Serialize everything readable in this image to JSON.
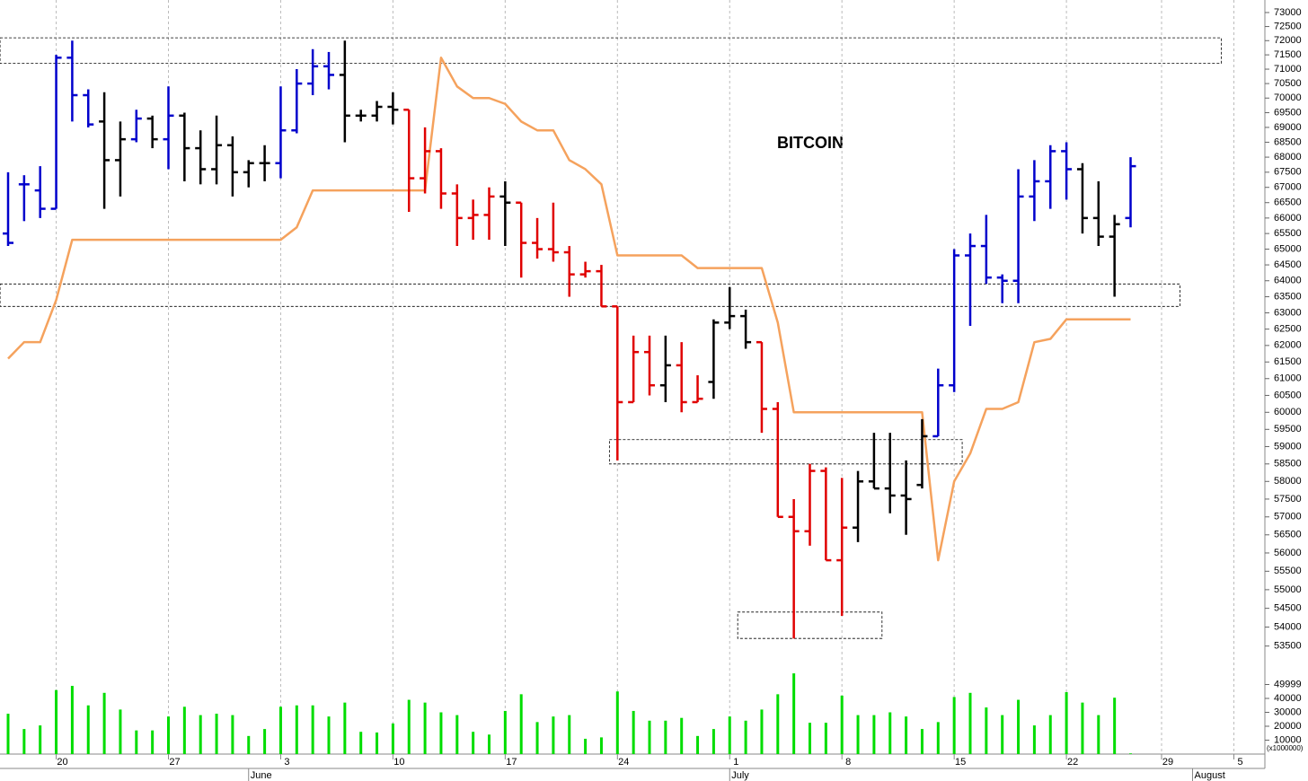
{
  "chart_data": {
    "type": "ohlc",
    "title": "BITCOIN",
    "categories": [
      null,
      null,
      null,
      "20",
      null,
      null,
      null,
      null,
      null,
      null,
      "27",
      null,
      null,
      null,
      null,
      null,
      null,
      "3",
      null,
      null,
      null,
      null,
      null,
      null,
      "10",
      null,
      null,
      null,
      null,
      null,
      null,
      "17",
      null,
      null,
      null,
      null,
      null,
      null,
      "24",
      null,
      null,
      null,
      null,
      null,
      null,
      "1",
      null,
      null,
      null,
      null,
      null,
      null,
      "8",
      null,
      null,
      null,
      null,
      null,
      null,
      "15",
      null,
      null,
      null,
      null,
      null,
      null,
      "22",
      null,
      null,
      null,
      null,
      null,
      null,
      "29",
      null,
      null,
      null,
      null,
      null,
      null,
      "5"
    ],
    "month_ticks": [
      {
        "value": 15,
        "label": "June"
      },
      {
        "value": 45,
        "label": "July"
      },
      {
        "value": 76,
        "label": "August"
      }
    ],
    "open": [
      65500,
      67100,
      66900,
      66300,
      71400,
      70100,
      69200,
      67900,
      68600,
      69300,
      68600,
      69400,
      68300,
      67600,
      68400,
      67500,
      67800,
      67800,
      68900,
      70500,
      71100,
      70800,
      69400,
      69400,
      69700,
      69600,
      67300,
      68200,
      66800,
      66000,
      66100,
      66700,
      66500,
      65200,
      65000,
      64900,
      64200,
      64300,
      63200,
      60300,
      61800,
      60800,
      61400,
      60300,
      60900,
      62700,
      62900,
      62100,
      60100,
      57000,
      56600,
      58300,
      55800,
      56700,
      58000,
      57800,
      57600,
      57900,
      59300,
      60800,
      64800,
      65100,
      64100,
      64000,
      66700,
      67200,
      68200,
      67600,
      66000,
      65400,
      66000,
      null,
      null,
      null,
      null,
      null,
      null,
      null,
      null,
      null,
      null
    ],
    "high": [
      67500,
      67400,
      67700,
      71500,
      72000,
      70300,
      70200,
      69200,
      69600,
      69400,
      70400,
      69500,
      68900,
      69400,
      68700,
      67900,
      68400,
      70400,
      71000,
      71700,
      71600,
      72000,
      69600,
      69900,
      70200,
      69600,
      69000,
      68300,
      67100,
      66600,
      67000,
      67200,
      66500,
      66000,
      66500,
      65100,
      64600,
      64500,
      63200,
      62300,
      62300,
      62300,
      62100,
      61100,
      62800,
      63800,
      63100,
      62100,
      60300,
      57500,
      58500,
      58400,
      58100,
      58300,
      59400,
      59400,
      58600,
      59800,
      61300,
      65000,
      65500,
      66100,
      64200,
      67600,
      67900,
      68400,
      68500,
      67800,
      67200,
      66100,
      68000,
      null,
      null,
      null,
      null,
      null,
      null,
      null,
      null,
      null,
      null
    ],
    "low": [
      65100,
      65900,
      66000,
      66300,
      69200,
      69000,
      66300,
      66700,
      68500,
      68300,
      67600,
      67200,
      67100,
      67100,
      66700,
      67000,
      67200,
      67300,
      68800,
      70100,
      70300,
      68500,
      69200,
      69200,
      69100,
      66200,
      66800,
      66300,
      65100,
      65300,
      65300,
      65100,
      64100,
      64700,
      64600,
      63500,
      64100,
      63200,
      58600,
      60300,
      60500,
      60300,
      60000,
      60300,
      60400,
      62500,
      61900,
      59400,
      57000,
      53700,
      56200,
      55800,
      54300,
      56300,
      57800,
      57100,
      56500,
      57800,
      59300,
      60600,
      62600,
      63900,
      63300,
      63300,
      65900,
      66300,
      66600,
      65500,
      65100,
      63500,
      65700,
      null,
      null,
      null,
      null,
      null,
      null,
      null,
      null,
      null,
      null
    ],
    "close": [
      65200,
      67100,
      66300,
      71400,
      70100,
      69100,
      67900,
      68600,
      69300,
      68600,
      69400,
      68300,
      67600,
      68400,
      67500,
      67800,
      67800,
      68900,
      70500,
      71100,
      70800,
      69400,
      69400,
      69700,
      69600,
      67300,
      68200,
      66800,
      66000,
      66100,
      66700,
      66500,
      65200,
      65000,
      64900,
      64200,
      64300,
      63200,
      60300,
      61800,
      60800,
      61400,
      60300,
      60400,
      62700,
      62900,
      62100,
      60100,
      57000,
      56600,
      58300,
      55800,
      56700,
      58000,
      57800,
      57600,
      57500,
      59300,
      60800,
      64800,
      65100,
      64100,
      64000,
      66700,
      67200,
      68200,
      67600,
      66000,
      65400,
      65800,
      67700,
      null,
      null,
      null,
      null,
      null,
      null,
      null,
      null,
      null,
      null
    ],
    "bar_colors": [
      "#0000cc",
      "#0000cc",
      "#0000cc",
      "#0000cc",
      "#0000cc",
      "#0000cc",
      "#000000",
      "#000000",
      "#0000cc",
      "#000000",
      "#0000cc",
      "#000000",
      "#000000",
      "#000000",
      "#000000",
      "#000000",
      "#000000",
      "#0000cc",
      "#0000cc",
      "#0000cc",
      "#0000cc",
      "#000000",
      "#000000",
      "#000000",
      "#000000",
      "#e00000",
      "#e00000",
      "#e00000",
      "#e00000",
      "#e00000",
      "#e00000",
      "#000000",
      "#e00000",
      "#e00000",
      "#e00000",
      "#e00000",
      "#e00000",
      "#e00000",
      "#e00000",
      "#e00000",
      "#e00000",
      "#000000",
      "#e00000",
      "#e00000",
      "#000000",
      "#000000",
      "#000000",
      "#e00000",
      "#e00000",
      "#e00000",
      "#e00000",
      "#e00000",
      "#e00000",
      "#000000",
      "#000000",
      "#000000",
      "#000000",
      "#000000",
      "#0000cc",
      "#0000cc",
      "#0000cc",
      "#0000cc",
      "#0000cc",
      "#0000cc",
      "#0000cc",
      "#0000cc",
      "#0000cc",
      "#000000",
      "#000000",
      "#000000",
      "#0000cc",
      null,
      null,
      null,
      null,
      null,
      null,
      null,
      null,
      null,
      null
    ],
    "stop": {
      "color": "#f5a25d",
      "values": [
        61600,
        62100,
        62100,
        63400,
        65300,
        65300,
        65300,
        65300,
        65300,
        65300,
        65300,
        65300,
        65300,
        65300,
        65300,
        65300,
        65300,
        65300,
        65700,
        66900,
        66900,
        66900,
        66900,
        66900,
        66900,
        66900,
        66900,
        71400,
        70400,
        70000,
        70000,
        69800,
        69200,
        68900,
        68900,
        67900,
        67600,
        67100,
        64800,
        64800,
        64800,
        64800,
        64800,
        64400,
        64400,
        64400,
        64400,
        64400,
        62700,
        60000,
        60000,
        60000,
        60000,
        60000,
        60000,
        60000,
        60000,
        60000,
        55800,
        58000,
        58800,
        60100,
        60100,
        60300,
        62100,
        62200,
        62800,
        62800,
        62800,
        62800,
        62800,
        null,
        null,
        null,
        null,
        null,
        null,
        null,
        null,
        null,
        null
      ]
    },
    "volume": {
      "color": "#00dd00",
      "label": "(x1000000)",
      "ylim": [
        0,
        60000
      ],
      "yticks": [
        10000,
        20000,
        30000,
        40000,
        49999
      ],
      "values": [
        29000,
        18000,
        20600,
        46000,
        49000,
        35000,
        44000,
        32000,
        17000,
        17000,
        27000,
        34000,
        28000,
        29000,
        28000,
        13000,
        18000,
        34000,
        35000,
        35000,
        27000,
        37000,
        16000,
        15500,
        22000,
        39000,
        37000,
        30000,
        28000,
        16000,
        14000,
        31000,
        43000,
        23000,
        27000,
        28000,
        11000,
        12000,
        45000,
        31000,
        24000,
        24000,
        26000,
        13000,
        18000,
        27000,
        24000,
        32000,
        43000,
        58000,
        22500,
        22500,
        42000,
        28000,
        28000,
        30000,
        27000,
        18000,
        23000,
        41000,
        44000,
        33500,
        28000,
        39000,
        20600,
        28000,
        44500,
        37000,
        28000,
        40500,
        500,
        null,
        null,
        null,
        null,
        null,
        null,
        null,
        null,
        null,
        null
      ]
    },
    "zones": [
      {
        "range": [
          71200,
          72100
        ],
        "from": 0,
        "to": 78
      },
      {
        "range": [
          63200,
          63900
        ],
        "from": 0,
        "to": 74
      },
      {
        "range": [
          58500,
          59200
        ],
        "from": 38,
        "to": 59
      },
      {
        "range": [
          53700,
          54400
        ],
        "from": 46,
        "to": 54
      }
    ],
    "ylim": [
      53000,
      73450
    ],
    "log": true,
    "grid": true,
    "yticks": [
      53500,
      54000,
      54500,
      55000,
      55500,
      56000,
      56500,
      57000,
      57500,
      58000,
      58500,
      59000,
      59500,
      60000,
      60500,
      61000,
      61500,
      62000,
      62500,
      63000,
      63500,
      64000,
      64500,
      65000,
      65500,
      66000,
      66500,
      67000,
      67500,
      68000,
      68500,
      69000,
      69500,
      70000,
      70500,
      71000,
      71500,
      72000,
      72500,
      73000
    ]
  }
}
